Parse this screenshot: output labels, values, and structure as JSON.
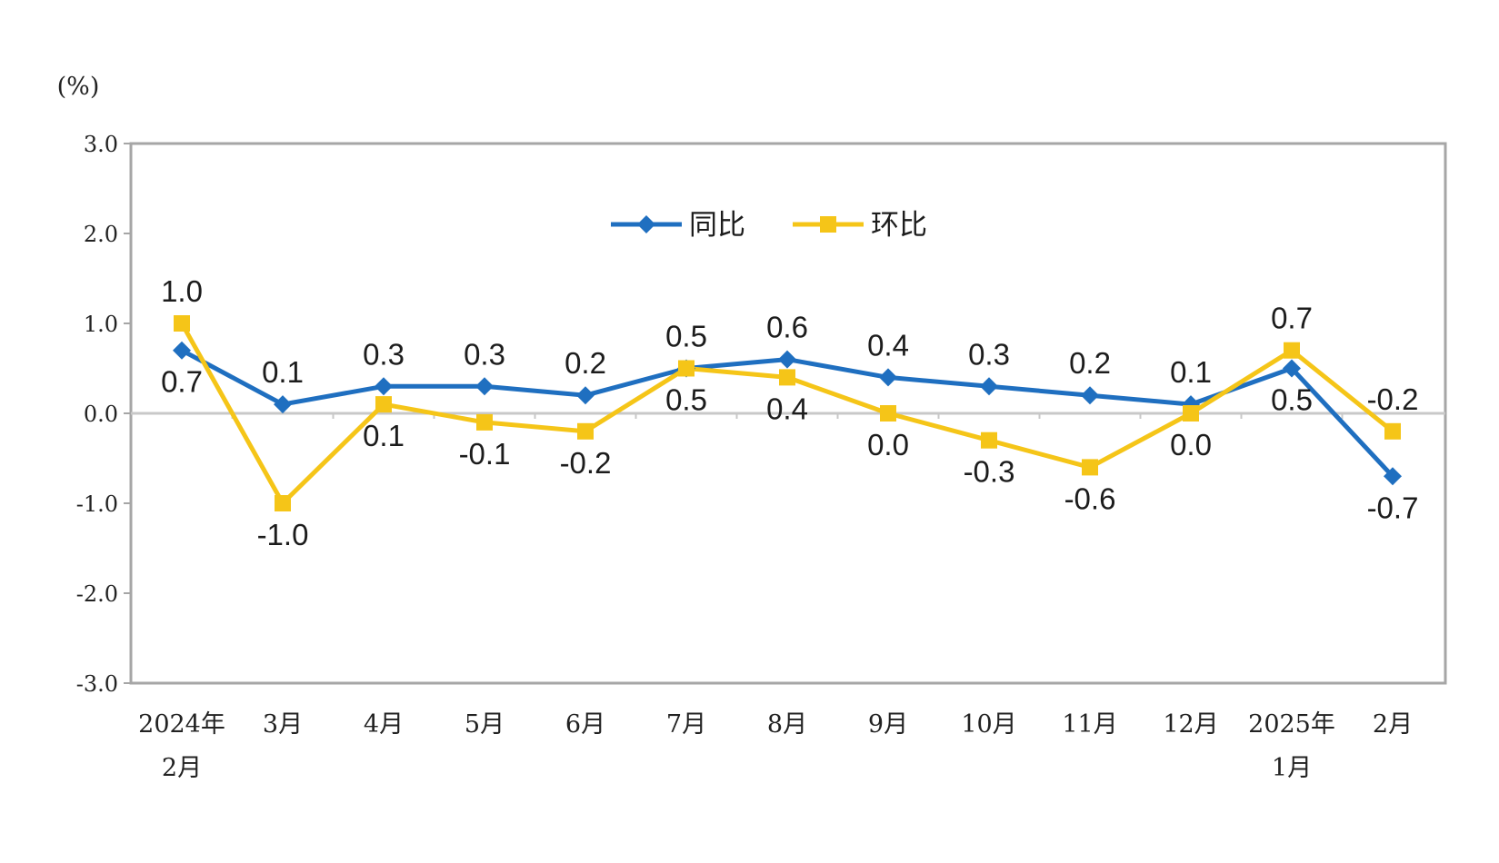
{
  "chart_data": {
    "type": "line",
    "title": "",
    "unit_label": "(%)",
    "xlabel": "",
    "ylabel": "",
    "ylim": [
      -3.0,
      3.0
    ],
    "yticks": [
      "3.0",
      "2.0",
      "1.0",
      "0.0",
      "-1.0",
      "-2.0",
      "-3.0"
    ],
    "ytick_values": [
      3,
      2,
      1,
      0,
      -1,
      -2,
      -3
    ],
    "grid": false,
    "legend_position": "top-center",
    "categories": [
      [
        "2024年",
        "2月"
      ],
      [
        "3月"
      ],
      [
        "4月"
      ],
      [
        "5月"
      ],
      [
        "6月"
      ],
      [
        "7月"
      ],
      [
        "8月"
      ],
      [
        "9月"
      ],
      [
        "10月"
      ],
      [
        "11月"
      ],
      [
        "12月"
      ],
      [
        "2025年",
        "1月"
      ],
      [
        "2月"
      ]
    ],
    "series": [
      {
        "name": "同比",
        "color": "#1f6fc0",
        "marker": "diamond",
        "values": [
          0.7,
          0.1,
          0.3,
          0.3,
          0.2,
          0.5,
          0.6,
          0.4,
          0.3,
          0.2,
          0.1,
          0.5,
          -0.7
        ],
        "labels": [
          "0.7",
          "0.1",
          "0.3",
          "0.3",
          "0.2",
          "0.5",
          "0.6",
          "0.4",
          "0.3",
          "0.2",
          "0.1",
          "0.5",
          "-0.7"
        ]
      },
      {
        "name": "环比",
        "color": "#f5c518",
        "marker": "square",
        "values": [
          1.0,
          -1.0,
          0.1,
          -0.1,
          -0.2,
          0.5,
          0.4,
          0.0,
          -0.3,
          -0.6,
          0.0,
          0.7,
          -0.2
        ],
        "labels": [
          "1.0",
          "-1.0",
          "0.1",
          "-0.1",
          "-0.2",
          "0.5",
          "0.4",
          "0.0",
          "-0.3",
          "-0.6",
          "0.0",
          "0.7",
          "-0.2"
        ]
      }
    ]
  }
}
